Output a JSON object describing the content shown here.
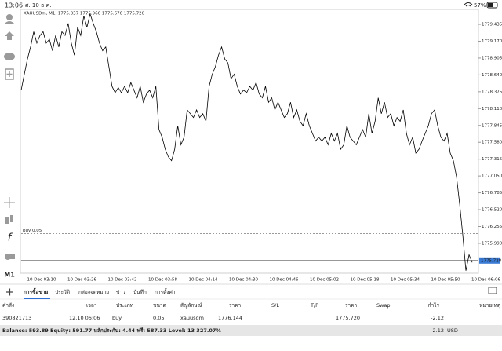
{
  "status_bar": {
    "time": "13:06",
    "date": "ศ. 10 ธ.ค.",
    "battery": "57%"
  },
  "chart": {
    "type": "line",
    "title": "XAUUSDm, M1, 1775.837 1775.966 1775.676 1775.720",
    "color": "#000000",
    "values": [
      1778.4,
      1778.65,
      1778.89,
      1779.08,
      1779.32,
      1779.14,
      1779.26,
      1779.32,
      1779.14,
      1779.2,
      1779.02,
      1779.26,
      1779.08,
      1779.32,
      1779.26,
      1779.45,
      1779.14,
      1778.95,
      1779.39,
      1779.26,
      1779.57,
      1779.39,
      1779.6,
      1779.45,
      1779.32,
      1779.14,
      1779.02,
      1779.08,
      1778.77,
      1778.46,
      1778.36,
      1778.44,
      1778.36,
      1778.46,
      1778.36,
      1778.52,
      1778.4,
      1778.28,
      1778.46,
      1778.21,
      1778.34,
      1778.4,
      1778.28,
      1778.46,
      1777.78,
      1777.66,
      1777.47,
      1777.35,
      1777.29,
      1777.47,
      1777.84,
      1777.54,
      1777.66,
      1778.09,
      1778.03,
      1777.97,
      1778.09,
      1777.97,
      1778.03,
      1777.91,
      1778.46,
      1778.65,
      1778.77,
      1778.95,
      1779.08,
      1778.89,
      1778.83,
      1778.58,
      1778.65,
      1778.46,
      1778.34,
      1778.4,
      1778.36,
      1778.46,
      1778.4,
      1778.52,
      1778.34,
      1778.28,
      1778.46,
      1778.21,
      1778.28,
      1778.09,
      1778.21,
      1778.09,
      1777.97,
      1778.03,
      1778.21,
      1777.97,
      1778.09,
      1777.91,
      1777.84,
      1778.03,
      1777.84,
      1777.72,
      1777.6,
      1777.66,
      1777.6,
      1777.66,
      1777.54,
      1777.72,
      1777.6,
      1777.72,
      1777.47,
      1777.54,
      1777.84,
      1777.66,
      1777.6,
      1777.54,
      1777.66,
      1777.78,
      1777.66,
      1778.03,
      1777.72,
      1777.91,
      1778.28,
      1778.03,
      1778.21,
      1777.97,
      1778.03,
      1777.84,
      1777.97,
      1777.91,
      1778.09,
      1777.72,
      1777.54,
      1777.66,
      1777.41,
      1777.47,
      1777.6,
      1777.72,
      1777.84,
      1778.03,
      1778.09,
      1777.84,
      1777.66,
      1777.6,
      1777.72,
      1777.41,
      1777.29,
      1777.04,
      1776.61,
      1776.12,
      1775.56,
      1775.81,
      1775.69
    ],
    "ylim": [
      1775.52,
      1779.67
    ],
    "yticks": [
      1779.435,
      {
        "value": 1779.17,
        "label": "1779.170"
      },
      1778.905,
      {
        "value": 1778.64,
        "label": "1778.640"
      },
      1778.375,
      {
        "value": 1778.11,
        "label": "1778.110"
      },
      1777.845,
      {
        "value": 1777.58,
        "label": "1777.580"
      },
      1777.315,
      {
        "value": 1777.05,
        "label": "1777.050"
      },
      1776.785,
      {
        "value": 1776.52,
        "label": "1776.520"
      },
      1776.255,
      {
        "value": 1775.99,
        "label": "1775.990"
      }
    ],
    "grid": false,
    "time_labels": [
      "10 Dec 03:10",
      "10 Dec 03:26",
      "10 Dec 03:42",
      "10 Dec 03:58",
      "10 Dec 04:14",
      "10 Dec 04:30",
      "10 Dec 04:46",
      "10 Dec 05:02",
      "10 Dec 05:18",
      "10 Dec 05:34",
      "10 Dec 05:50",
      "10 Dec 06:06"
    ],
    "current_price": {
      "value": 1775.72,
      "label": "1775.720"
    },
    "order_line": {
      "value": 1776.144,
      "label": "buy 0.05"
    }
  },
  "toolbar": {
    "timeframe": "M1"
  },
  "tabs": [
    "การซื้อขาย",
    "ประวัติ",
    "กล่องจดหมาย",
    "ข่าว",
    "บันทึก",
    "การตั้งค่า"
  ],
  "table": {
    "columns": [
      "คำสั่ง",
      "เวลา",
      "ประเภท",
      "ขนาด",
      "สัญลักษณ์",
      "ราคา",
      "S/L",
      "T/P",
      "ราคา",
      "Swap",
      "กำไร",
      "หมายเหตุ"
    ],
    "rows": [
      [
        "390821713",
        "12.10 06:06",
        "buy",
        "0.05",
        "xauusdm",
        "1776.144",
        null,
        null,
        "1775.720",
        null,
        "-2.12",
        null
      ]
    ]
  },
  "footer": {
    "summary": "Balance: 593.89 Equity: 591.77 หลักประกัน: 4.44 ฟรี: 587.33 Level: 13 327.07%",
    "profit": "-2.12",
    "currency": "USD"
  }
}
